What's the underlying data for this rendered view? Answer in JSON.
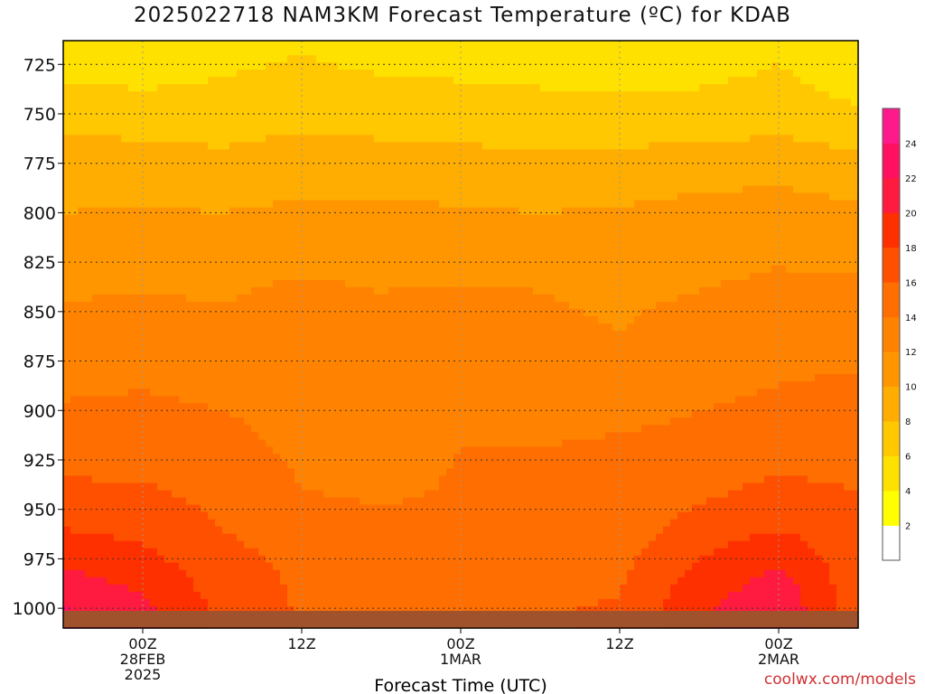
{
  "chart_data": {
    "type": "heatmap",
    "title": "2025022718 NAM3KM Forecast Temperature (ºC) for KDAB",
    "xlabel": "Forecast Time (UTC)",
    "ylabel": "",
    "credit": "coolwx.com/models",
    "x_ticks": [
      {
        "hours": 6,
        "lines": [
          "00Z",
          "28FEB",
          "2025"
        ]
      },
      {
        "hours": 18,
        "lines": [
          "12Z"
        ]
      },
      {
        "hours": 30,
        "lines": [
          "00Z",
          "1MAR"
        ]
      },
      {
        "hours": 42,
        "lines": [
          "12Z"
        ]
      },
      {
        "hours": 54,
        "lines": [
          "00Z",
          "2MAR"
        ]
      }
    ],
    "x_range_hours": [
      0,
      60
    ],
    "y_ticks": [
      725,
      750,
      775,
      800,
      825,
      850,
      875,
      900,
      925,
      950,
      975,
      1000
    ],
    "y_range_hPa": [
      713,
      1010
    ],
    "ground_color": "#a0522d",
    "colorbar": {
      "labels": [
        "2",
        "4",
        "6",
        "8",
        "10",
        "12",
        "14",
        "16",
        "18",
        "20",
        "22",
        "24"
      ],
      "colors": [
        "#ffffff",
        "#ffff00",
        "#ffe100",
        "#ffc800",
        "#ffad00",
        "#ff9600",
        "#ff8200",
        "#ff6e00",
        "#ff5000",
        "#ff3000",
        "#ff1a40",
        "#ff1060",
        "#ff1a8c"
      ]
    },
    "grid": true,
    "levels_hPa": [
      720,
      740,
      760,
      780,
      800,
      820,
      840,
      860,
      880,
      900,
      920,
      940,
      960,
      980,
      1000
    ],
    "times_hours": [
      0,
      6,
      12,
      18,
      24,
      30,
      36,
      42,
      48,
      54,
      60
    ],
    "temperature_C": [
      [
        5.0,
        4.6,
        5.5,
        6.0,
        5.4,
        5.2,
        5.0,
        4.5,
        5.0,
        5.8,
        4.4
      ],
      [
        6.5,
        6.2,
        6.4,
        6.8,
        6.6,
        6.4,
        6.2,
        6.0,
        6.2,
        6.6,
        5.6
      ],
      [
        8.0,
        7.8,
        7.6,
        8.0,
        7.8,
        7.6,
        7.5,
        7.4,
        7.6,
        7.9,
        7.2
      ],
      [
        9.2,
        9.0,
        8.8,
        9.4,
        9.3,
        9.0,
        8.8,
        9.0,
        9.4,
        9.6,
        9.0
      ],
      [
        10.0,
        10.2,
        10.0,
        10.4,
        10.4,
        10.2,
        10.0,
        10.2,
        10.6,
        10.8,
        10.4
      ],
      [
        11.0,
        11.2,
        11.0,
        11.4,
        11.2,
        11.2,
        11.0,
        11.0,
        11.2,
        11.6,
        11.4
      ],
      [
        11.8,
        12.0,
        11.8,
        12.4,
        12.0,
        12.2,
        12.0,
        11.6,
        12.0,
        12.6,
        12.4
      ],
      [
        12.6,
        12.8,
        12.4,
        12.6,
        12.2,
        12.6,
        12.4,
        12.0,
        12.8,
        13.2,
        13.4
      ],
      [
        13.4,
        13.6,
        13.2,
        12.8,
        12.6,
        13.0,
        12.8,
        12.6,
        13.4,
        13.8,
        14.0
      ],
      [
        14.2,
        14.4,
        14.0,
        13.2,
        13.0,
        13.4,
        13.6,
        13.4,
        14.0,
        14.4,
        14.6
      ],
      [
        15.0,
        15.2,
        14.8,
        13.6,
        13.2,
        14.0,
        14.0,
        14.4,
        14.8,
        15.4,
        15.2
      ],
      [
        16.4,
        16.2,
        15.4,
        14.0,
        13.6,
        14.2,
        14.2,
        14.8,
        15.6,
        16.4,
        16.0
      ],
      [
        18.0,
        17.4,
        16.0,
        15.0,
        14.6,
        14.6,
        14.4,
        15.0,
        16.8,
        18.0,
        16.6
      ],
      [
        20.0,
        19.0,
        16.8,
        15.6,
        15.4,
        15.4,
        15.0,
        15.6,
        18.4,
        20.2,
        16.8
      ],
      [
        22.2,
        20.6,
        17.4,
        15.8,
        15.8,
        16.0,
        15.8,
        16.2,
        19.6,
        21.8,
        16.6
      ]
    ]
  }
}
